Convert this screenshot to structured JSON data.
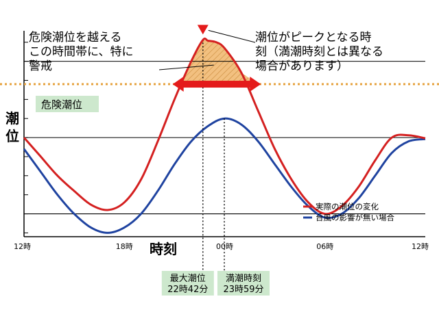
{
  "chart_data": {
    "type": "line",
    "title": "",
    "ylabel": "潮位",
    "xlabel": "時刻",
    "x_ticks": [
      "12時",
      "18時",
      "00時",
      "06時",
      "12時"
    ],
    "x_tick_hours": [
      12,
      18,
      24,
      30,
      36
    ],
    "xlim": [
      12,
      36
    ],
    "ylim": [
      -0.3,
      2.4
    ],
    "grid": "horizontal",
    "legend_position": "bottom-right",
    "danger_level": 1.7,
    "danger_label": "危険潮位",
    "series": [
      {
        "name": "実際の潮位の変化",
        "color": "#d42020",
        "x": [
          12,
          13,
          14,
          15,
          16,
          17,
          18,
          19,
          20,
          21,
          22,
          22.7,
          23,
          23.5,
          24,
          25,
          26,
          27,
          28,
          29,
          30,
          31,
          32,
          33,
          34,
          35,
          36
        ],
        "y": [
          1.0,
          0.75,
          0.5,
          0.3,
          0.12,
          0.05,
          0.15,
          0.45,
          0.95,
          1.5,
          2.0,
          2.28,
          2.27,
          2.25,
          2.17,
          1.85,
          1.35,
          0.85,
          0.45,
          0.15,
          0.0,
          0.1,
          0.35,
          0.7,
          1.0,
          1.03,
          0.99
        ]
      },
      {
        "name": "台風の影響が無い場合",
        "color": "#1f43a0",
        "x": [
          12,
          13,
          14,
          15,
          16,
          17,
          18,
          19,
          20,
          21,
          22,
          23,
          24,
          25,
          26,
          27,
          28,
          29,
          30,
          31,
          32,
          33,
          34,
          35,
          36
        ],
        "y": [
          0.85,
          0.55,
          0.25,
          0.0,
          -0.18,
          -0.25,
          -0.18,
          0.0,
          0.3,
          0.65,
          0.95,
          1.15,
          1.25,
          1.17,
          0.95,
          0.65,
          0.35,
          0.1,
          -0.05,
          0.0,
          0.2,
          0.5,
          0.8,
          0.95,
          0.98
        ]
      }
    ],
    "annotations": {
      "danger_period": "危険潮位を越える\nこの時間帯に、特に\n警戒",
      "peak": "潮位がピークとなる時\n刻（満潮時刻とは異なる\n場合があります）",
      "max_tide": {
        "label": "最大潮位",
        "time_text": "22時42分",
        "hour": 22.7
      },
      "high_tide": {
        "label": "満潮時刻",
        "time_text": "23時59分",
        "hour": 23.98
      }
    },
    "danger_span_hours": [
      21.3,
      26.0
    ],
    "colors": {
      "danger_line": "#e6a23c",
      "danger_fill": "#f2c080",
      "danger_label_bg": "#cde8cd",
      "time_label_bg": "#cde8cd",
      "arrow": "#e41b1b"
    }
  }
}
